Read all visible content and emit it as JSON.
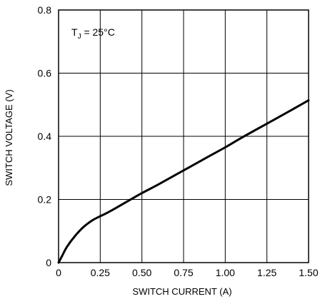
{
  "chart_data": {
    "type": "line",
    "xlabel": "SWITCH CURRENT (A)",
    "ylabel": "SWITCH VOLTAGE (V)",
    "xlim": [
      0,
      1.5
    ],
    "ylim": [
      0,
      0.8
    ],
    "xticks": [
      "0",
      "0.25",
      "0.50",
      "0.75",
      "1.00",
      "1.25",
      "1.50"
    ],
    "yticks": [
      "0",
      "0.2",
      "0.4",
      "0.6",
      "0.8"
    ],
    "grid": true,
    "annotation": {
      "main": "T",
      "sub": "J",
      "rest": " = 25°C"
    },
    "series": [
      {
        "x": [
          0,
          0.02,
          0.05,
          0.1,
          0.15,
          0.2,
          0.25,
          0.3,
          0.4,
          0.5,
          0.6,
          0.75,
          0.9,
          1.0,
          1.1,
          1.25,
          1.4,
          1.5
        ],
        "y": [
          0,
          0.02,
          0.05,
          0.085,
          0.113,
          0.133,
          0.147,
          0.16,
          0.19,
          0.22,
          0.248,
          0.292,
          0.336,
          0.365,
          0.396,
          0.44,
          0.484,
          0.514
        ]
      }
    ]
  }
}
